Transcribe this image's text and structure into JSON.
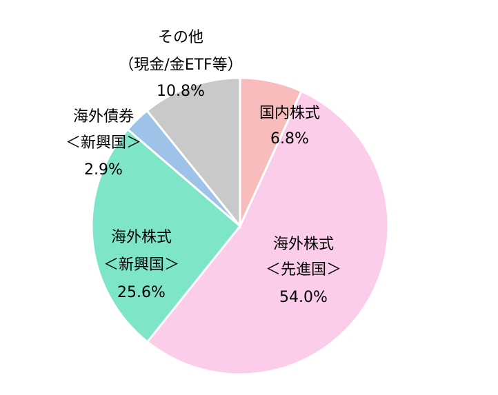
{
  "chart_data": {
    "type": "pie",
    "labels": [
      [
        "国内株式"
      ],
      [
        "海外株式",
        "＜先進国＞"
      ],
      [
        "海外株式",
        "＜新興国＞"
      ],
      [
        "海外債券",
        "＜新興国＞"
      ],
      [
        "その他",
        "（現金/金ETF等）"
      ]
    ],
    "values": [
      6.8,
      54.0,
      25.6,
      2.9,
      10.8
    ],
    "value_labels": [
      "6.8%",
      "54.0%",
      "25.6%",
      "2.9%",
      "10.8%"
    ],
    "colors": [
      "#f9bcbc",
      "#fbcdea",
      "#7fe5c9",
      "#9fc3e8",
      "#c9c9c9"
    ]
  }
}
